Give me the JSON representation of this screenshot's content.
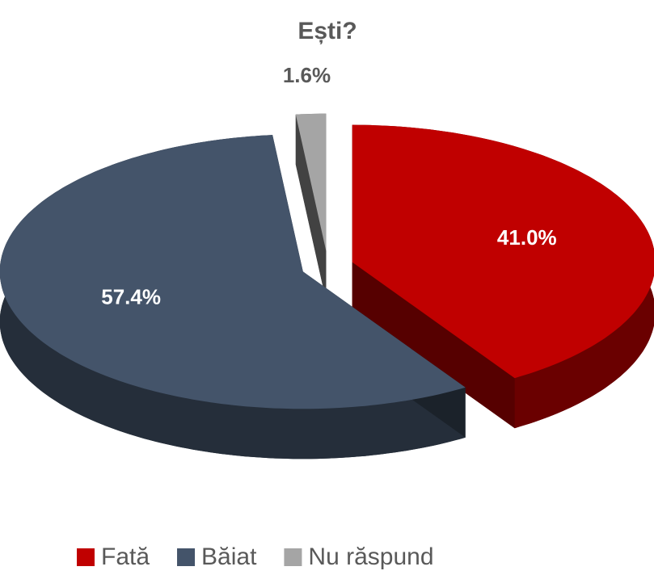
{
  "chart_data": {
    "type": "pie",
    "title": "Ești?",
    "categories": [
      "Fată",
      "Băiat",
      "Nu răspund"
    ],
    "values": [
      41.0,
      57.4,
      1.6
    ],
    "value_labels": [
      "41.0%",
      "57.4%",
      "1.6%"
    ],
    "colors": [
      "#c00000",
      "#44546a",
      "#a5a5a5"
    ],
    "legend": "bottom"
  }
}
